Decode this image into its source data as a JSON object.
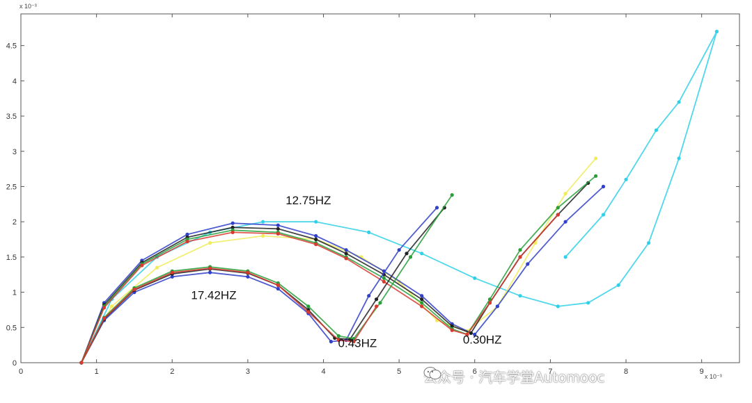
{
  "chart_data": {
    "type": "line",
    "title": "",
    "xlabel": "",
    "ylabel": "",
    "x_multiplier_label": "x 10⁻³",
    "y_multiplier_label": "x 10⁻³",
    "xlim": [
      0,
      9.5
    ],
    "ylim": [
      0,
      4.95
    ],
    "xticks": [
      0,
      1,
      2,
      3,
      4,
      5,
      6,
      7,
      8,
      9
    ],
    "xtick_labels": [
      "0",
      "1",
      "2",
      "3",
      "4",
      "5",
      "6",
      "7",
      "8",
      "9"
    ],
    "yticks": [
      0,
      0.5,
      1,
      1.5,
      2,
      2.5,
      3,
      3.5,
      4,
      4.5
    ],
    "ytick_labels": [
      "0",
      "0.5",
      "1",
      "1.5",
      "2",
      "2.5",
      "3",
      "3.5",
      "4",
      "4.5"
    ],
    "grid": false,
    "annotations": [
      {
        "text": "12.75HZ",
        "x": 3.8,
        "y": 2.25
      },
      {
        "text": "17.42HZ",
        "x": 2.55,
        "y": 0.9
      },
      {
        "text": "0.43HZ",
        "x": 4.45,
        "y": 0.22
      },
      {
        "text": "0.30HZ",
        "x": 6.1,
        "y": 0.27
      }
    ],
    "series": [
      {
        "color": "#2fd0e8",
        "x": [
          0.8,
          1.2,
          1.8,
          2.5,
          3.2,
          3.9,
          4.6,
          5.3,
          6.0,
          6.6,
          7.1,
          7.5,
          7.9,
          8.3,
          8.7,
          9.2,
          8.7,
          8.4,
          8.0,
          7.7,
          7.2
        ],
        "y": [
          0.0,
          0.9,
          1.5,
          1.85,
          2.0,
          2.0,
          1.85,
          1.55,
          1.2,
          0.95,
          0.8,
          0.85,
          1.1,
          1.7,
          2.9,
          4.7,
          3.7,
          3.3,
          2.6,
          2.1,
          1.5
        ]
      },
      {
        "color": "#f0ec5a",
        "x": [
          0.8,
          1.2,
          1.8,
          2.5,
          3.2,
          3.9,
          4.5,
          5.0,
          5.5,
          5.9,
          6.3,
          6.8,
          7.2,
          7.6
        ],
        "y": [
          0.0,
          0.8,
          1.35,
          1.7,
          1.8,
          1.75,
          1.5,
          1.15,
          0.6,
          0.45,
          0.8,
          1.7,
          2.4,
          2.9
        ]
      },
      {
        "color": "#3040c8",
        "x": [
          0.8,
          1.1,
          1.6,
          2.2,
          2.8,
          3.4,
          3.9,
          4.3,
          4.8,
          5.3,
          5.7,
          6.0,
          6.3,
          6.7,
          7.2,
          7.7
        ],
        "y": [
          0.0,
          0.85,
          1.45,
          1.82,
          1.98,
          1.95,
          1.8,
          1.6,
          1.3,
          0.95,
          0.55,
          0.4,
          0.8,
          1.4,
          2.0,
          2.5
        ]
      },
      {
        "color": "#222222",
        "x": [
          0.8,
          1.1,
          1.6,
          2.2,
          2.8,
          3.4,
          3.9,
          4.3,
          4.8,
          5.3,
          5.7,
          5.95,
          6.2,
          6.6,
          7.1,
          7.5
        ],
        "y": [
          0.0,
          0.82,
          1.42,
          1.78,
          1.92,
          1.9,
          1.75,
          1.55,
          1.25,
          0.9,
          0.52,
          0.42,
          0.85,
          1.5,
          2.1,
          2.55
        ]
      },
      {
        "color": "#27a03a",
        "x": [
          0.8,
          1.1,
          1.6,
          2.2,
          2.8,
          3.4,
          3.9,
          4.3,
          4.8,
          5.3,
          5.7,
          5.9,
          6.2,
          6.6,
          7.1,
          7.6
        ],
        "y": [
          0.0,
          0.8,
          1.4,
          1.75,
          1.88,
          1.85,
          1.7,
          1.5,
          1.2,
          0.85,
          0.48,
          0.4,
          0.9,
          1.6,
          2.2,
          2.65
        ]
      },
      {
        "color": "#d83a30",
        "x": [
          0.8,
          1.1,
          1.6,
          2.2,
          2.8,
          3.4,
          3.9,
          4.3,
          4.8,
          5.3,
          5.7,
          5.9,
          6.2,
          6.6,
          7.1
        ],
        "y": [
          0.0,
          0.78,
          1.38,
          1.72,
          1.85,
          1.83,
          1.68,
          1.48,
          1.15,
          0.8,
          0.46,
          0.4,
          0.85,
          1.5,
          2.1
        ]
      },
      {
        "color": "#3040c8",
        "x": [
          0.8,
          1.1,
          1.5,
          2.0,
          2.5,
          3.0,
          3.4,
          3.8,
          4.1,
          4.3,
          4.6,
          5.0,
          5.5
        ],
        "y": [
          0.0,
          0.6,
          1.0,
          1.22,
          1.28,
          1.22,
          1.05,
          0.7,
          0.3,
          0.32,
          0.95,
          1.6,
          2.2
        ]
      },
      {
        "color": "#222222",
        "x": [
          0.8,
          1.1,
          1.5,
          2.0,
          2.5,
          3.0,
          3.4,
          3.8,
          4.15,
          4.35,
          4.7,
          5.1,
          5.6
        ],
        "y": [
          0.0,
          0.62,
          1.03,
          1.26,
          1.33,
          1.27,
          1.1,
          0.75,
          0.35,
          0.33,
          0.9,
          1.55,
          2.2
        ]
      },
      {
        "color": "#27a03a",
        "x": [
          0.8,
          1.1,
          1.5,
          2.0,
          2.5,
          3.0,
          3.4,
          3.8,
          4.2,
          4.4,
          4.75,
          5.15,
          5.7
        ],
        "y": [
          0.0,
          0.64,
          1.06,
          1.3,
          1.36,
          1.3,
          1.13,
          0.8,
          0.38,
          0.34,
          0.85,
          1.5,
          2.38
        ]
      },
      {
        "color": "#d83a30",
        "x": [
          0.8,
          1.1,
          1.5,
          2.0,
          2.5,
          3.0,
          3.4,
          3.8,
          4.2,
          4.4,
          4.7
        ],
        "y": [
          0.0,
          0.63,
          1.04,
          1.28,
          1.34,
          1.28,
          1.1,
          0.72,
          0.32,
          0.3,
          0.8
        ]
      }
    ]
  },
  "watermark": {
    "text": "公众号 · 汽车学堂Automooc"
  }
}
